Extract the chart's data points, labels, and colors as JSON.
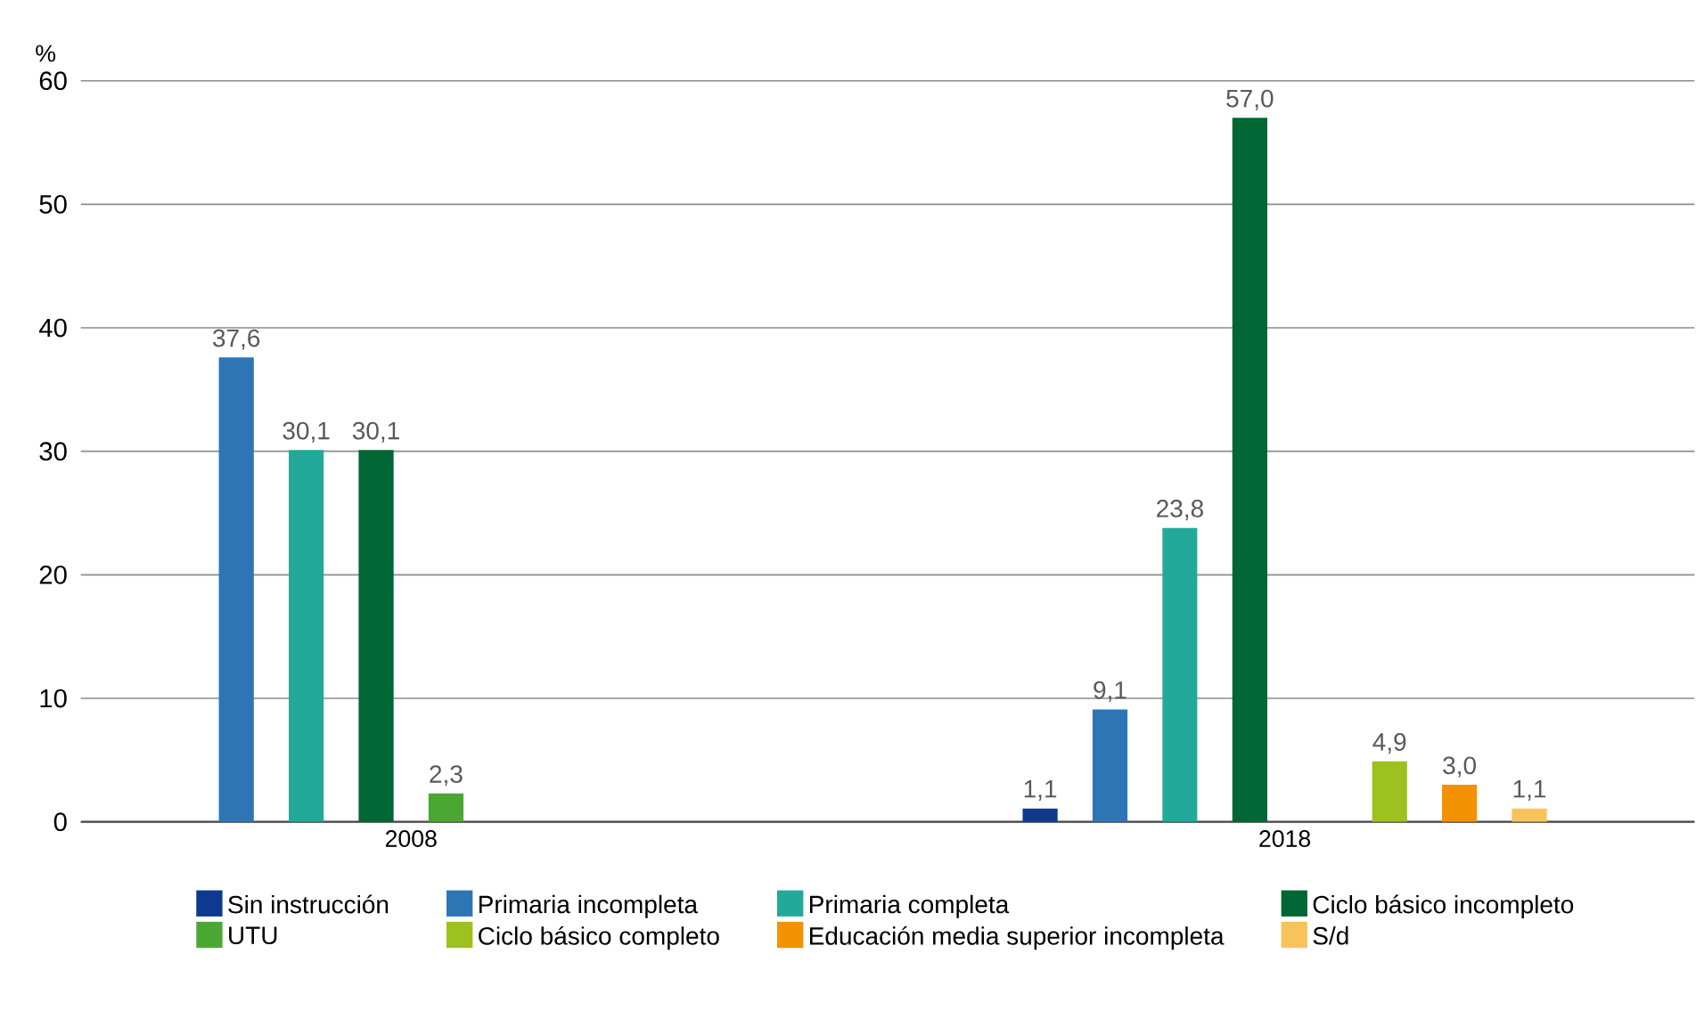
{
  "chart_data": {
    "type": "bar",
    "ylabel": "%",
    "categories": [
      "2008",
      "2018"
    ],
    "ylim": [
      0,
      60
    ],
    "yticks": [
      0,
      10,
      20,
      30,
      40,
      50,
      60
    ],
    "grid": "y",
    "legend": "bottom",
    "series": [
      {
        "name": "Sin instrucción",
        "color": "#0d3a8e",
        "values": [
          null,
          1.1
        ],
        "value_labels": [
          null,
          "1,1"
        ]
      },
      {
        "name": "Primaria incompleta",
        "color": "#2e75b6",
        "values": [
          37.6,
          9.1
        ],
        "value_labels": [
          "37,6",
          "9,1"
        ]
      },
      {
        "name": "Primaria completa",
        "color": "#22a99a",
        "values": [
          30.1,
          23.8
        ],
        "value_labels": [
          "30,1",
          "23,8"
        ]
      },
      {
        "name": "Ciclo básico incompleto",
        "color": "#006633",
        "values": [
          30.1,
          57.0
        ],
        "value_labels": [
          "30,1",
          "57,0"
        ]
      },
      {
        "name": "UTU",
        "color": "#4aa832",
        "values": [
          2.3,
          null
        ],
        "value_labels": [
          "2,3",
          null
        ]
      },
      {
        "name": "Ciclo básico completo",
        "color": "#9dc11e",
        "values": [
          null,
          4.9
        ],
        "value_labels": [
          null,
          "4,9"
        ]
      },
      {
        "name": "Educación media superior incompleta",
        "color": "#f39200",
        "values": [
          null,
          3.0
        ],
        "value_labels": [
          null,
          "3,0"
        ]
      },
      {
        "name": "S/d",
        "color": "#f7c35a",
        "values": [
          null,
          1.1
        ],
        "value_labels": [
          null,
          "1,1"
        ]
      }
    ]
  }
}
